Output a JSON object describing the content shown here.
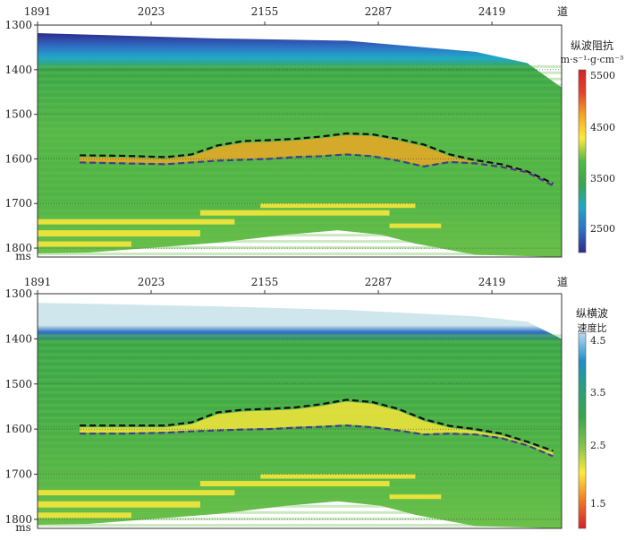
{
  "chart_data": [
    {
      "type": "heatmap",
      "title": "",
      "xlabel": "道",
      "ylabel": "ms",
      "xticks": [
        "1891",
        "2023",
        "2155",
        "2287",
        "2419"
      ],
      "yticks": [
        "1300",
        "1400",
        "1500",
        "1600",
        "1700",
        "1800"
      ],
      "xlim": [
        1891,
        2500
      ],
      "ylim": [
        1300,
        1820
      ],
      "colorbar": {
        "label_line1": "纵波阻抗",
        "label_line2": "m·s⁻¹·g·cm⁻³",
        "ticks": [
          "5500",
          "4500",
          "3500",
          "2500"
        ],
        "range": [
          2200,
          5500
        ],
        "colors": [
          "#2e2a8c",
          "#2f6fc4",
          "#22a8c8",
          "#3aa64a",
          "#55b848",
          "#ffe93a",
          "#f5a623",
          "#e2442a",
          "#d6202a"
        ]
      },
      "horizons": [
        {
          "style": "dashed-black",
          "x": [
            1940,
            1990,
            2040,
            2070,
            2100,
            2130,
            2160,
            2190,
            2220,
            2250,
            2280,
            2310,
            2340,
            2370,
            2400,
            2430,
            2460,
            2490
          ],
          "y": [
            1592,
            1593,
            1596,
            1590,
            1570,
            1560,
            1558,
            1555,
            1550,
            1543,
            1545,
            1555,
            1568,
            1590,
            1603,
            1612,
            1628,
            1655
          ]
        },
        {
          "style": "dashed-purple",
          "x": [
            1940,
            1990,
            2040,
            2070,
            2100,
            2130,
            2160,
            2190,
            2220,
            2250,
            2280,
            2310,
            2340,
            2370,
            2400,
            2430,
            2460,
            2490
          ],
          "y": [
            1608,
            1610,
            1612,
            1608,
            1604,
            1602,
            1600,
            1596,
            1594,
            1590,
            1594,
            1604,
            1617,
            1607,
            1610,
            1618,
            1630,
            1660
          ]
        }
      ]
    },
    {
      "type": "heatmap",
      "title": "",
      "xlabel": "道",
      "ylabel": "ms",
      "xticks": [
        "1891",
        "2023",
        "2155",
        "2287",
        "2419"
      ],
      "yticks": [
        "1300",
        "1400",
        "1500",
        "1600",
        "1700",
        "1800"
      ],
      "xlim": [
        1891,
        2500
      ],
      "ylim": [
        1300,
        1820
      ],
      "colorbar": {
        "label_line1": "纵横波",
        "label_line2": "速度比",
        "ticks": [
          "4.5",
          "3.5",
          "2.5",
          "1.5"
        ],
        "range": [
          1.0,
          4.5
        ],
        "colors": [
          "#d6202a",
          "#f07a24",
          "#ffe93a",
          "#7fc24a",
          "#3aa64a",
          "#2aa07a",
          "#1e8fc8",
          "#b8d8f0"
        ]
      },
      "horizons": [
        {
          "style": "dashed-black",
          "x": [
            1940,
            1990,
            2040,
            2070,
            2100,
            2130,
            2160,
            2190,
            2220,
            2250,
            2280,
            2310,
            2340,
            2370,
            2400,
            2430,
            2460,
            2490
          ],
          "y": [
            1592,
            1592,
            1592,
            1585,
            1563,
            1557,
            1555,
            1552,
            1545,
            1535,
            1540,
            1555,
            1578,
            1593,
            1600,
            1610,
            1628,
            1648
          ]
        },
        {
          "style": "dashed-purple",
          "x": [
            1940,
            1990,
            2040,
            2070,
            2100,
            2130,
            2160,
            2190,
            2220,
            2250,
            2280,
            2310,
            2340,
            2370,
            2400,
            2430,
            2460,
            2490
          ],
          "y": [
            1610,
            1610,
            1608,
            1605,
            1603,
            1601,
            1600,
            1597,
            1595,
            1592,
            1596,
            1603,
            1612,
            1610,
            1612,
            1620,
            1636,
            1660
          ]
        }
      ]
    }
  ]
}
